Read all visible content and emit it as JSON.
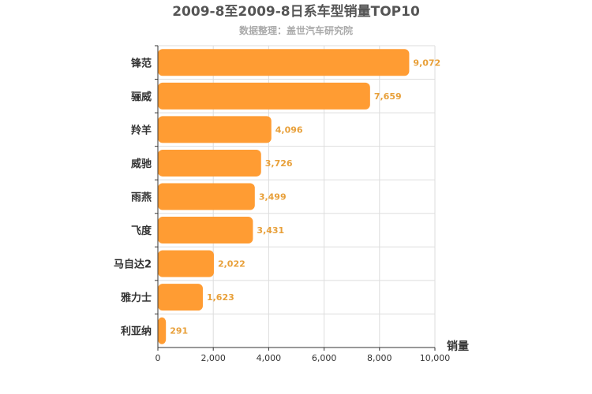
{
  "chart_data": {
    "type": "bar",
    "orientation": "horizontal",
    "title": "2009-8至2009-8日系车型销量TOP10",
    "subtitle": "数据整理：盖世汽车研究院",
    "xlabel": "销量",
    "ylabel": "",
    "categories": [
      "锋范",
      "骊威",
      "羚羊",
      "威驰",
      "雨燕",
      "飞度",
      "马自达2",
      "雅力士",
      "利亚纳"
    ],
    "values": [
      9072,
      7659,
      4096,
      3726,
      3499,
      3431,
      2022,
      1623,
      291
    ],
    "value_labels": [
      "9,072",
      "7,659",
      "4,096",
      "3,726",
      "3,499",
      "3,431",
      "2,022",
      "1,623",
      "291"
    ],
    "xlim": [
      0,
      10000
    ],
    "xticks": [
      0,
      2000,
      4000,
      6000,
      8000,
      10000
    ],
    "xtick_labels": [
      "0",
      "2,000",
      "4,000",
      "6,000",
      "8,000",
      "10,000"
    ],
    "grid": true,
    "legend": "none",
    "colors": {
      "bar": "#ff9c33",
      "value_label": "#e8a03a"
    }
  }
}
